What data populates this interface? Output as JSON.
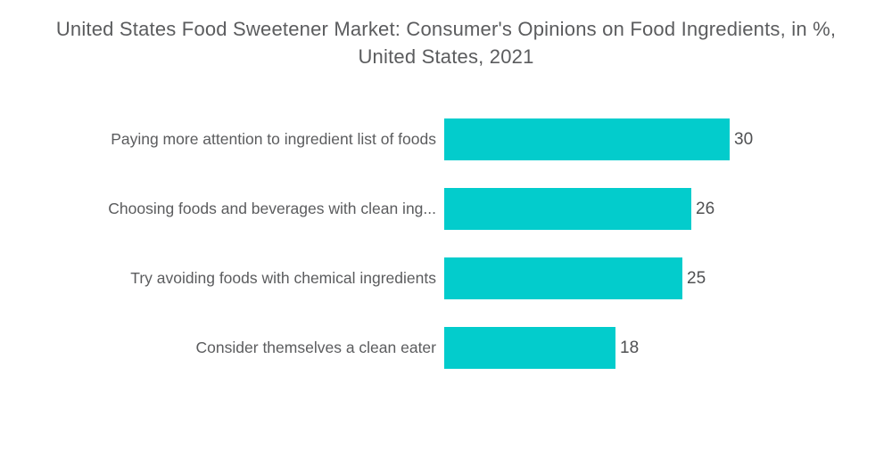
{
  "title": "United States Food Sweetener Market: Consumer's Opinions on Food Ingredients, in %, United States, 2021",
  "colors": {
    "bar": "#03cccc",
    "title_text": "#5b5c5e",
    "label_text": "#5b5c5e",
    "value_text": "#4f5052",
    "background": "#ffffff"
  },
  "chart_data": {
    "type": "bar",
    "orientation": "horizontal",
    "title": "United States Food Sweetener Market: Consumer's Opinions on Food Ingredients, in %, United States, 2021",
    "categories": [
      "Paying more attention to ingredient list of foods",
      "Choosing foods and beverages with clean ing...",
      "Try avoiding foods with chemical ingredients",
      "Consider themselves a clean eater"
    ],
    "values": [
      30,
      26,
      25,
      18
    ],
    "xlabel": "",
    "ylabel": "",
    "xlim": [
      0,
      30
    ],
    "grid": false,
    "legend": false,
    "value_labels_position": "end-of-bar",
    "unit": "%"
  }
}
